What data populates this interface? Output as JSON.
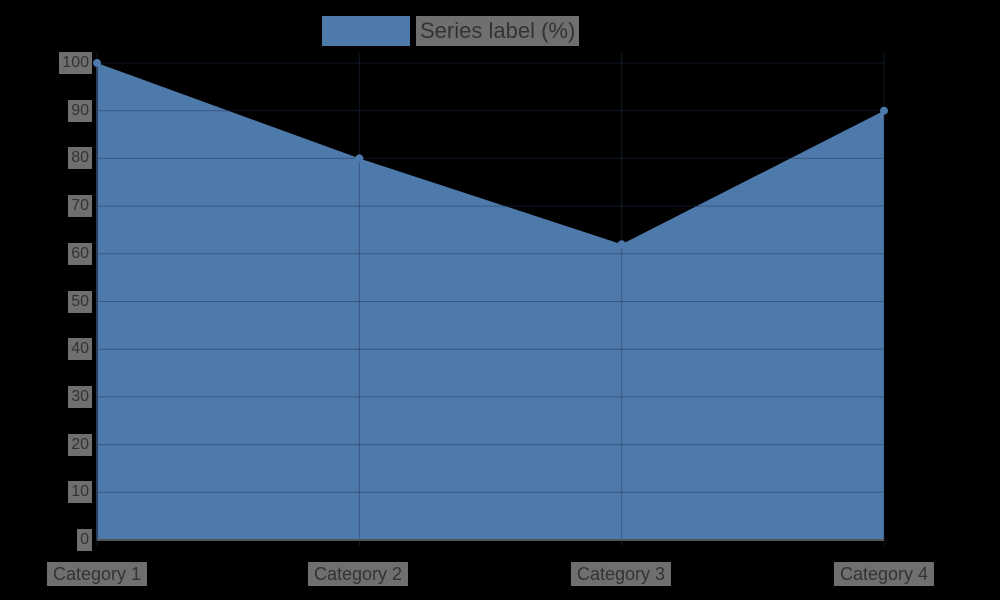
{
  "chart_data": {
    "type": "area",
    "title": "",
    "categories": [
      "Category 1",
      "Category 2",
      "Category 3",
      "Category 4"
    ],
    "series": [
      {
        "name": "Series label (%)",
        "values": [
          100,
          80,
          62,
          90
        ],
        "color": "#4e79ab"
      }
    ],
    "xlabel": "",
    "ylabel": "",
    "ylim": [
      0,
      100
    ],
    "yticks": [
      0,
      10,
      20,
      30,
      40,
      50,
      60,
      70,
      80,
      90,
      100
    ],
    "grid": true,
    "legend_position": "top"
  },
  "legend": {
    "label": "Series label (%)",
    "color": "#4e79ab"
  },
  "yaxis": {
    "ticks": [
      "100",
      "90",
      "80",
      "70",
      "60",
      "50",
      "40",
      "30",
      "20",
      "10",
      "0"
    ]
  },
  "xaxis": {
    "ticks": [
      "Category 1",
      "Category 2",
      "Category 3",
      "Category 4"
    ]
  }
}
